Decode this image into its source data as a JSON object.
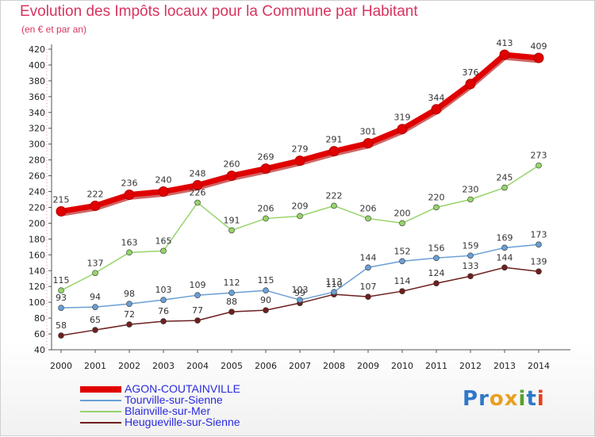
{
  "chart_data": {
    "type": "line",
    "title": "Evolution des Impôts locaux pour la Commune par Habitant",
    "subtitle": "(en € et par an)",
    "x": [
      "2000",
      "2001",
      "2002",
      "2003",
      "2004",
      "2005",
      "2006",
      "2007",
      "2008",
      "2009",
      "2010",
      "2011",
      "2012",
      "2013",
      "2014"
    ],
    "yticks": [
      40,
      60,
      80,
      100,
      120,
      140,
      160,
      180,
      200,
      220,
      240,
      260,
      280,
      300,
      320,
      340,
      360,
      380,
      400,
      420
    ],
    "ylim": [
      40,
      420
    ],
    "grid": false,
    "legend_position": "bottom-left",
    "series": [
      {
        "name": "AGON-COUTAINVILLE",
        "color": "#e00000",
        "values": [
          215,
          222,
          236,
          240,
          248,
          260,
          269,
          279,
          291,
          301,
          319,
          344,
          376,
          413,
          409
        ]
      },
      {
        "name": "Tourville-sur-Sienne",
        "color": "#6a9fd4",
        "values": [
          93,
          94,
          98,
          103,
          109,
          112,
          115,
          103,
          113,
          144,
          152,
          156,
          159,
          169,
          173
        ]
      },
      {
        "name": "Blainville-sur-Mer",
        "color": "#96d46a",
        "values": [
          115,
          137,
          163,
          165,
          226,
          191,
          206,
          209,
          222,
          206,
          200,
          220,
          230,
          245,
          273
        ]
      },
      {
        "name": "Heugueville-sur-Sienne",
        "color": "#6e1f1f",
        "values": [
          58,
          65,
          72,
          76,
          77,
          88,
          90,
          99,
          110,
          107,
          114,
          124,
          133,
          144,
          139
        ]
      }
    ]
  },
  "logo": {
    "letters": [
      "P",
      "r",
      "o",
      "x",
      "i",
      "t",
      "i"
    ],
    "colors": [
      "#2f78c8",
      "#2f78c8",
      "#e8a020",
      "#e8a020",
      "#5aa02c",
      "#2f78c8",
      "#e84020"
    ]
  }
}
